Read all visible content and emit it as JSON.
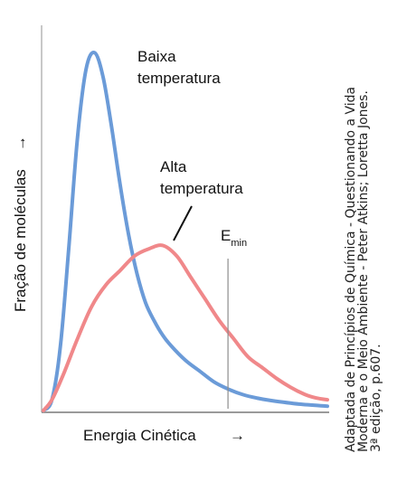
{
  "chart_data": {
    "type": "line",
    "xlabel": "Energia Cinética",
    "ylabel": "Fração de moléculas",
    "x_arrow": "→",
    "y_arrow": "→",
    "xlim": [
      0,
      10
    ],
    "ylim": [
      0,
      1
    ],
    "grid": false,
    "series": [
      {
        "name": "Baixa temperatura",
        "label_line1": "Baixa",
        "label_line2": "temperatura",
        "color": "#6b9bd8",
        "x": [
          0,
          0.3,
          0.6,
          0.9,
          1.2,
          1.5,
          1.8,
          2.1,
          2.4,
          2.7,
          3.0,
          3.3,
          3.6,
          3.9,
          4.2,
          4.5,
          5.0,
          5.5,
          6.0,
          6.5,
          7.0,
          7.5,
          8.0,
          9.0,
          10.0
        ],
        "y": [
          0.0,
          0.03,
          0.18,
          0.46,
          0.76,
          0.95,
          0.997,
          0.93,
          0.79,
          0.63,
          0.49,
          0.38,
          0.3,
          0.25,
          0.21,
          0.18,
          0.14,
          0.11,
          0.08,
          0.06,
          0.045,
          0.035,
          0.028,
          0.018,
          0.012
        ]
      },
      {
        "name": "Alta temperatura",
        "label_line1": "Alta",
        "label_line2": "temperatura",
        "color": "#f0888a",
        "x": [
          0,
          0.3,
          0.7,
          1.2,
          1.7,
          2.2,
          2.7,
          3.2,
          3.7,
          4.2,
          4.7,
          5.2,
          5.7,
          6.2,
          6.7,
          7.2,
          7.7,
          8.2,
          8.7,
          9.2,
          9.6,
          10.0
        ],
        "y": [
          0.0,
          0.03,
          0.1,
          0.2,
          0.29,
          0.35,
          0.39,
          0.43,
          0.45,
          0.46,
          0.43,
          0.37,
          0.31,
          0.25,
          0.2,
          0.15,
          0.12,
          0.09,
          0.065,
          0.045,
          0.035,
          0.03
        ]
      }
    ],
    "annotations": [
      {
        "text": "E",
        "subscript": "min",
        "x": 6.5
      }
    ]
  },
  "credit": {
    "line1": "Adaptada de Princípios de Química - Questionando a Vida",
    "line2": "Moderna e o Meio Ambiente - Peter Atkins; Loretta Jones.",
    "line3": "3ª edição, p.607."
  }
}
